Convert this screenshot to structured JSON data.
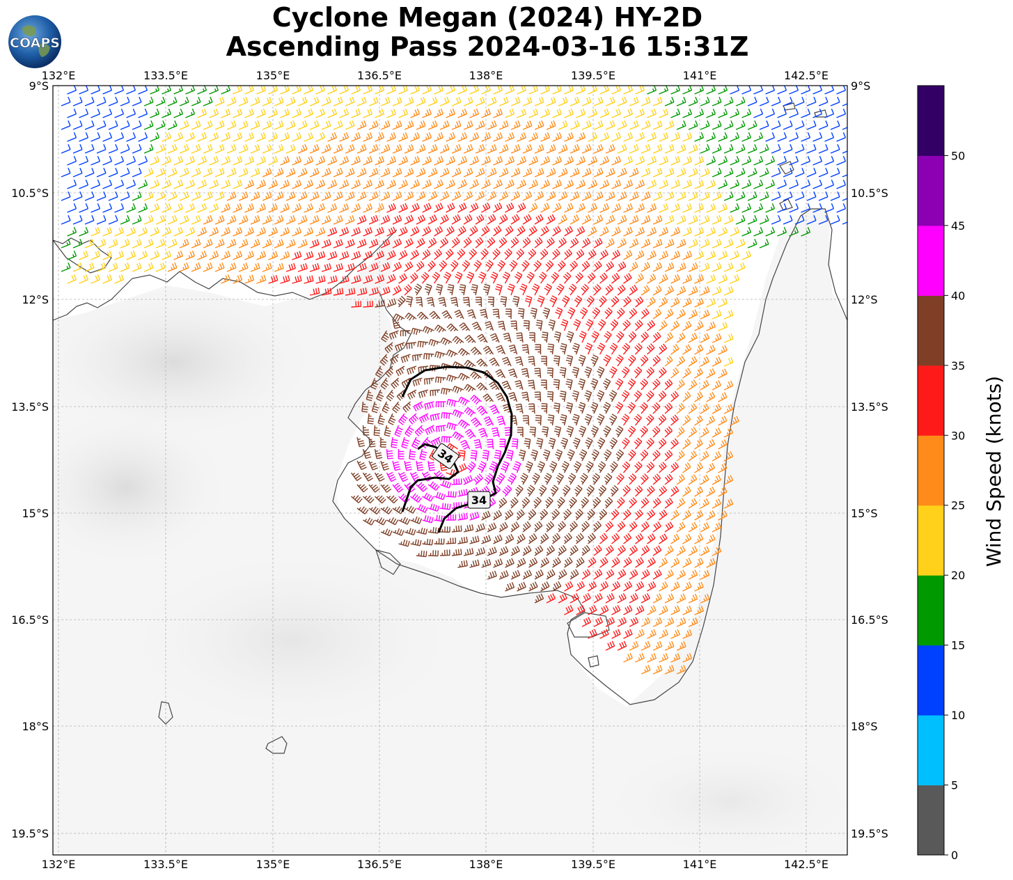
{
  "title": {
    "line1": "Cyclone Megan (2024) HY-2D",
    "line2": "Ascending Pass 2024-03-16 15:31Z"
  },
  "logo": {
    "text": "COAPS"
  },
  "map": {
    "lon_ticks": [
      "132°E",
      "133.5°E",
      "135°E",
      "136.5°E",
      "138°E",
      "139.5°E",
      "141°E",
      "142.5°E"
    ],
    "lat_ticks_left": [
      "9°S",
      "10.5°S",
      "12°S",
      "13.5°S",
      "15°S",
      "16.5°S",
      "18°S",
      "19.5°S"
    ],
    "lat_ticks_right": [
      "9°S",
      "10.5°S",
      "12°S",
      "13.5°S",
      "15°S",
      "16.5°S",
      "18°S",
      "19.5°S"
    ],
    "lon_range": [
      131.92,
      143.05
    ],
    "lat_range": [
      -19.79,
      -9.0
    ],
    "gridlines": true,
    "contour_level_label": "34",
    "contour_labels": [
      "34",
      "34"
    ]
  },
  "colorbar": {
    "label": "Wind Speed (knots)",
    "ticks": [
      "0",
      "5",
      "10",
      "15",
      "20",
      "25",
      "30",
      "35",
      "40",
      "45",
      "50"
    ],
    "colors": [
      "#595959",
      "#00bfff",
      "#0040ff",
      "#009900",
      "#ffd11a",
      "#ff8c1a",
      "#ff1a1a",
      "#7f3f26",
      "#ff00ff",
      "#8c00b3",
      "#330066"
    ]
  },
  "colors": {
    "wind_0_5": "#595959",
    "wind_5_10": "#00bfff",
    "wind_10_15": "#0040ff",
    "wind_15_20": "#009900",
    "wind_20_25": "#ffd11a",
    "wind_25_30": "#ff8c1a",
    "wind_30_35": "#ff1a1a",
    "wind_35_40": "#7f3f26",
    "wind_40_45": "#ff00ff",
    "wind_45_50": "#8c00b3",
    "wind_50_plus": "#330066",
    "contour": "#000000",
    "coastline": "#444444"
  }
}
